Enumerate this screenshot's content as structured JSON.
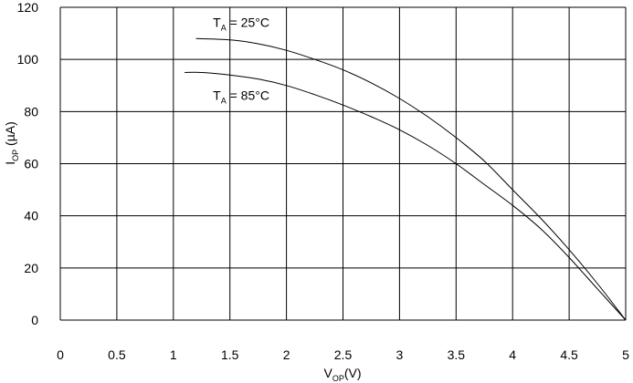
{
  "chart_data": {
    "type": "line",
    "title": "",
    "xlabel": {
      "main": "V",
      "sub": "OP",
      "suffix": "(V)"
    },
    "ylabel": {
      "main": "I",
      "sub": "OP",
      "suffix": " (µA)"
    },
    "xlim": [
      0,
      5
    ],
    "ylim": [
      0,
      120
    ],
    "x_ticks": [
      0,
      0.5,
      1,
      1.5,
      2,
      2.5,
      3,
      3.5,
      4,
      4.5,
      5
    ],
    "x_tick_labels": [
      "0",
      "0.5",
      "1",
      "1.5",
      "2",
      "2.5",
      "3",
      "3.5",
      "4",
      "4.5",
      "5"
    ],
    "y_ticks": [
      0,
      20,
      40,
      60,
      80,
      100,
      120
    ],
    "y_tick_labels": [
      "0",
      "20",
      "40",
      "60",
      "80",
      "100",
      "120"
    ],
    "grid": true,
    "series": [
      {
        "name": "TA = 25°C",
        "color": "#000000",
        "x": [
          1.2,
          1.5,
          1.75,
          2.0,
          2.25,
          2.5,
          2.75,
          3.0,
          3.25,
          3.5,
          3.75,
          4.0,
          4.25,
          4.5,
          4.75,
          5.0
        ],
        "y": [
          108,
          107.5,
          106,
          103.5,
          100,
          96,
          91,
          85,
          78,
          70,
          61,
          50,
          39,
          27,
          14,
          0
        ]
      },
      {
        "name": "TA = 85°C",
        "color": "#000000",
        "x": [
          1.1,
          1.25,
          1.5,
          1.75,
          2.0,
          2.25,
          2.5,
          2.75,
          3.0,
          3.25,
          3.5,
          3.75,
          4.0,
          4.25,
          4.5,
          4.75,
          5.0
        ],
        "y": [
          95,
          95,
          94,
          92.5,
          90,
          86.5,
          82.5,
          78,
          73,
          67,
          60,
          52,
          44,
          35,
          24,
          12,
          0
        ]
      }
    ],
    "annotations": [
      {
        "main": "T",
        "sub": "A",
        "text": " = 25°C",
        "x": 1.35,
        "y": 112.5
      },
      {
        "main": "T",
        "sub": "A",
        "text": " = 85°C",
        "x": 1.35,
        "y": 84.5
      }
    ]
  }
}
